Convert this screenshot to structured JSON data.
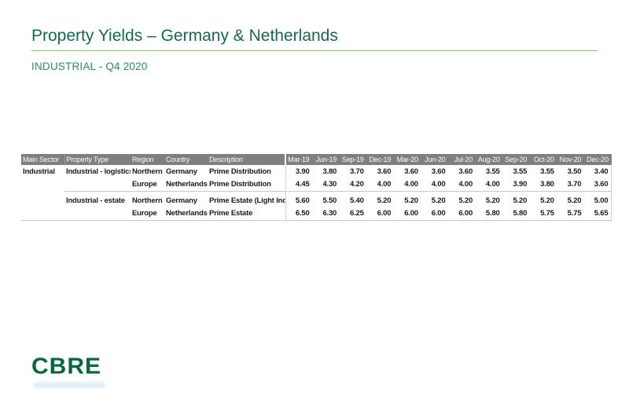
{
  "page": {
    "title": "Property Yields – Germany & Netherlands",
    "subtitle": "INDUSTRIAL - Q4 2020",
    "logo_text": "CBRE"
  },
  "colors": {
    "title_green": "#17684E",
    "subtitle_green": "#219558",
    "rule_green": "#86C562",
    "logo_green": "#04693E",
    "table_header_gray": "#7F7F7F",
    "table_border_gray": "#C8C8C8"
  },
  "table": {
    "columns": [
      "Main Sector",
      "Property Type",
      "Region",
      "Country",
      "Description",
      "Mar-19",
      "Jun-19",
      "Sep-19",
      "Dec-19",
      "Mar-20",
      "Jun-20",
      "Jul-20",
      "Aug-20",
      "Sep-20",
      "Oct-20",
      "Nov-20",
      "Dec-20"
    ],
    "rows": [
      [
        "Industrial",
        "Industrial - logistics",
        "Northern",
        "Germany",
        "Prime Distribution",
        "3.90",
        "3.80",
        "3.70",
        "3.60",
        "3.60",
        "3.60",
        "3.60",
        "3.55",
        "3.55",
        "3.55",
        "3.50",
        "3.40"
      ],
      [
        "",
        "",
        "Europe",
        "Netherlands",
        "Prime Distribution",
        "4.45",
        "4.30",
        "4.20",
        "4.00",
        "4.00",
        "4.00",
        "4.00",
        "4.00",
        "3.90",
        "3.80",
        "3.70",
        "3.60"
      ],
      [
        "",
        "Industrial - estate",
        "Northern",
        "Germany",
        "Prime Estate (Light Indust..",
        "5.60",
        "5.50",
        "5.40",
        "5.20",
        "5.20",
        "5.20",
        "5.20",
        "5.20",
        "5.20",
        "5.20",
        "5.20",
        "5.00"
      ],
      [
        "",
        "",
        "Europe",
        "Netherlands",
        "Prime Estate",
        "6.50",
        "6.30",
        "6.25",
        "6.00",
        "6.00",
        "6.00",
        "6.00",
        "5.80",
        "5.80",
        "5.75",
        "5.75",
        "5.65"
      ]
    ]
  }
}
